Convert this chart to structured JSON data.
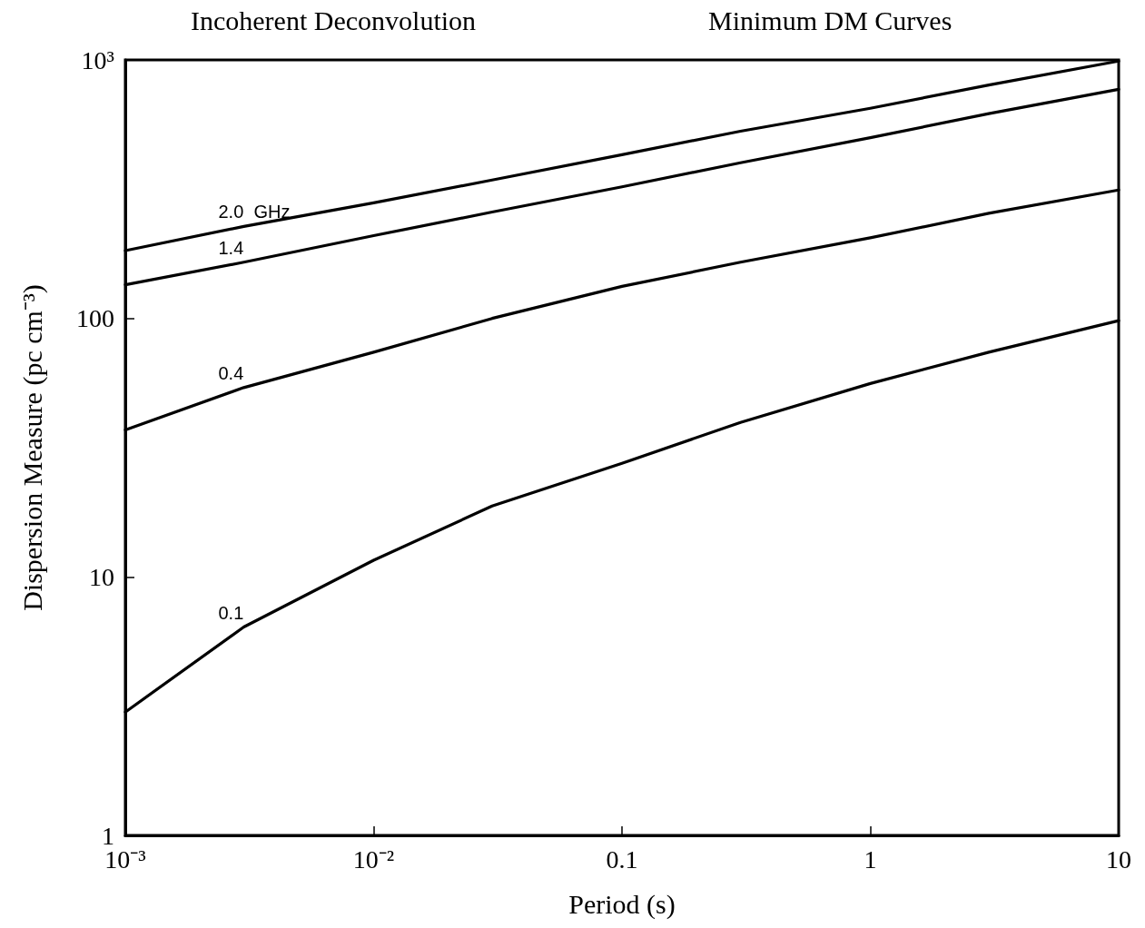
{
  "chart_data": {
    "type": "line",
    "title": "Incoherent Deconvolution",
    "subtitle": "Minimum DM Curves",
    "xlabel": "Period (s)",
    "ylabel": "Dispersion Measure (pc cm⁻³)",
    "log": "xy",
    "grid": false,
    "marker": "none",
    "line_style": "solid",
    "xlim": [
      0.001,
      10
    ],
    "xticks": [
      {
        "value": 0.001,
        "label": "10⁻³"
      },
      {
        "value": 0.01,
        "label": "10⁻²"
      },
      0.1,
      1,
      10
    ],
    "ylim": [
      1,
      1000
    ],
    "yticks": [
      1,
      10,
      100,
      {
        "value": 1000,
        "label": "10³"
      }
    ],
    "x": [
      0.001,
      0.003,
      0.01,
      0.03,
      0.1,
      0.3,
      1,
      3,
      10
    ],
    "series": [
      {
        "name": "2.0  GHz",
        "color": "#000000",
        "values": [
          183,
          227,
          280,
          343,
          430,
          530,
          650,
          800,
          990
        ]
      },
      {
        "name": "1.4",
        "color": "#000000",
        "values": [
          135,
          165,
          209,
          258,
          323,
          400,
          500,
          620,
          770
        ]
      },
      {
        "name": "0.4",
        "color": "#000000",
        "values": [
          37,
          54,
          74,
          100,
          133,
          165,
          205,
          255,
          314
        ]
      },
      {
        "name": "0.1",
        "color": "#000000",
        "values": [
          3,
          6.4,
          11.6,
          18.8,
          27.5,
          39.6,
          56,
          74,
          98
        ]
      }
    ]
  }
}
